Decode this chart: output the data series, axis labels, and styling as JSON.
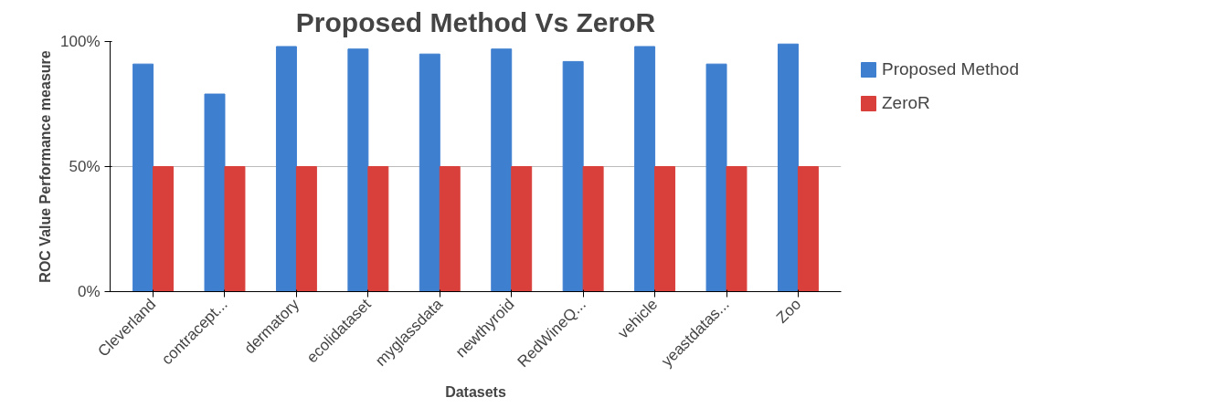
{
  "chart_data": {
    "type": "bar",
    "title": "Proposed Method Vs ZeroR",
    "xlabel": "Datasets",
    "ylabel": "ROC Value Performance measure",
    "categories": [
      "Cleverland",
      "contracept...",
      "dermatory",
      "ecolidataset",
      "myglassdata",
      "newthyroid",
      "RedWineQ...",
      "vehicle",
      "yeastdatas...",
      "Zoo"
    ],
    "series": [
      {
        "name": "Proposed Method",
        "color": "#3f7fd0",
        "values": [
          91,
          79,
          98,
          97,
          95,
          97,
          92,
          98,
          91,
          99
        ]
      },
      {
        "name": "ZeroR",
        "color": "#d9403c",
        "values": [
          50,
          50,
          50,
          50,
          50,
          50,
          50,
          50,
          50,
          50
        ]
      }
    ],
    "ylim": [
      0,
      100
    ],
    "yticks": [
      {
        "value": 0,
        "label": "0%"
      },
      {
        "value": 50,
        "label": "50%"
      },
      {
        "value": 100,
        "label": "100%"
      }
    ],
    "grid": "y",
    "legend": "right"
  }
}
